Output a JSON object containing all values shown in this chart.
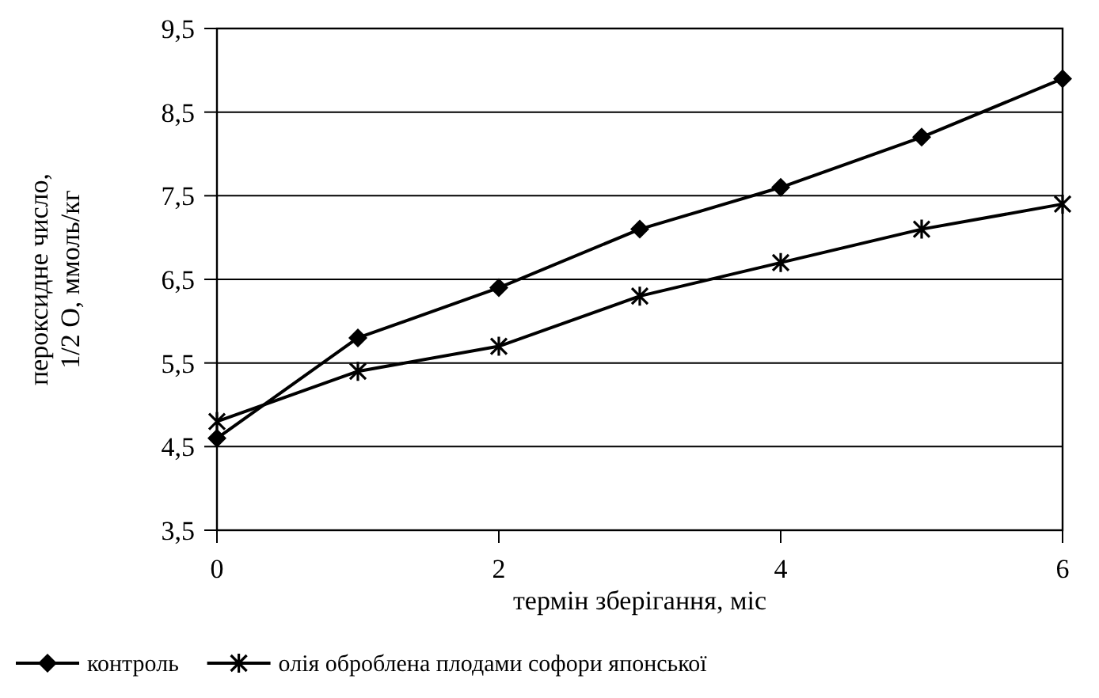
{
  "chart_data": {
    "type": "line",
    "xlabel": "термін зберігання, міс",
    "ylabel": "пероксидне число,\n1/2 О, ммоль/кг",
    "x": [
      0,
      1,
      2,
      3,
      4,
      5,
      6
    ],
    "series": [
      {
        "name": "контроль",
        "color": "#000000",
        "marker": "diamond",
        "values": [
          4.6,
          5.8,
          6.4,
          7.1,
          7.6,
          8.2,
          8.9
        ]
      },
      {
        "name": "олія оброблена плодами софори японської",
        "color": "#000000",
        "marker": "cross",
        "values": [
          4.8,
          5.4,
          5.7,
          6.3,
          6.7,
          7.1,
          7.4
        ]
      }
    ],
    "xlim": [
      0,
      6
    ],
    "xticks": [
      0,
      2,
      4,
      6
    ],
    "ylim": [
      3.5,
      9.5
    ],
    "yticks": [
      {
        "value": 3.5,
        "label": "3,5"
      },
      {
        "value": 4.5,
        "label": "4,5"
      },
      {
        "value": 5.5,
        "label": "5,5"
      },
      {
        "value": 6.5,
        "label": "6,5"
      },
      {
        "value": 7.5,
        "label": "7,5"
      },
      {
        "value": 8.5,
        "label": "8,5"
      },
      {
        "value": 9.5,
        "label": "9,5"
      }
    ],
    "grid": "y",
    "legend": "bottom",
    "line_style": "solid"
  }
}
